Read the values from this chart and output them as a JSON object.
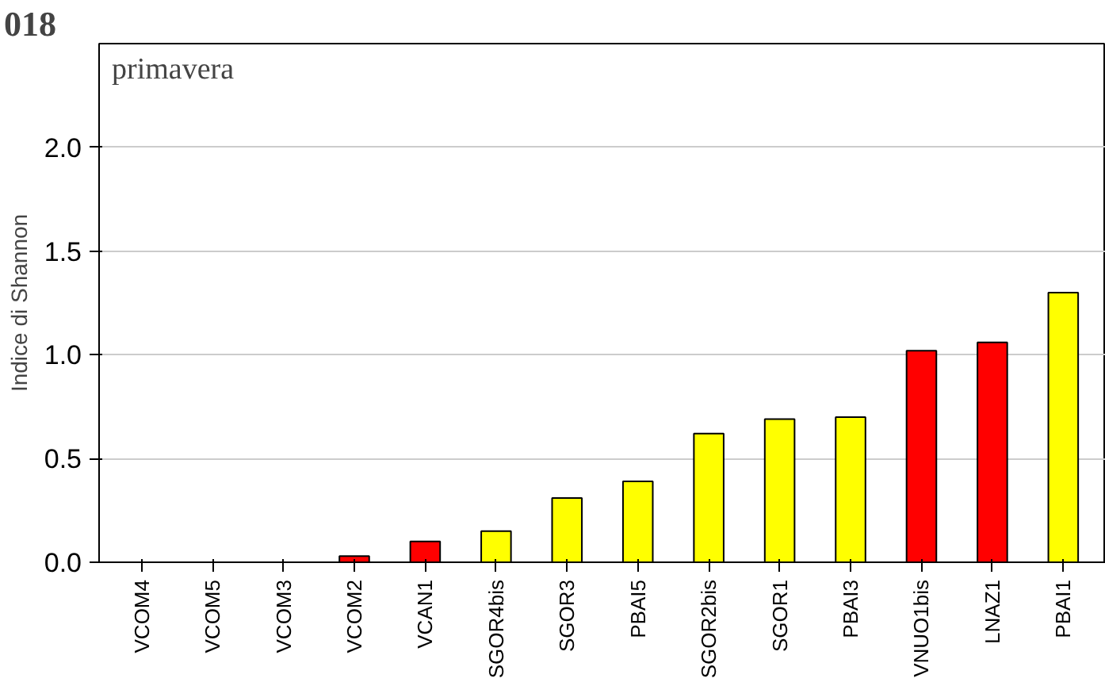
{
  "chart_data": {
    "type": "bar",
    "title": "018",
    "ylabel": "Indice di Shannon",
    "annotations": [
      "primavera"
    ],
    "categories": [
      "VCOM4",
      "VCOM5",
      "VCOM3",
      "VCOM2",
      "VCAN1",
      "SGOR4bis",
      "SGOR3",
      "PBAI5",
      "SGOR2bis",
      "SGOR1",
      "PBAI3",
      "VNUO1bis",
      "LNAZ1",
      "PBAI1"
    ],
    "values": [
      0,
      0,
      0,
      0.03,
      0.1,
      0.15,
      0.31,
      0.39,
      0.62,
      0.69,
      0.7,
      1.02,
      1.06,
      1.3
    ],
    "colors": [
      "#000000",
      "#000000",
      "#000000",
      "#ff0000",
      "#ff0000",
      "#ffff00",
      "#ffff00",
      "#ffff00",
      "#ffff00",
      "#ffff00",
      "#ffff00",
      "#ff0000",
      "#ff0000",
      "#ffff00"
    ],
    "ylim": [
      0,
      2.5
    ],
    "yticks": [
      {
        "value": 0,
        "label": "0.0"
      },
      {
        "value": 0.5,
        "label": "0.5"
      },
      {
        "value": 1,
        "label": "1.0"
      },
      {
        "value": 1.5,
        "label": "1.5"
      },
      {
        "value": 2,
        "label": "2.0"
      }
    ],
    "grid": "y"
  }
}
